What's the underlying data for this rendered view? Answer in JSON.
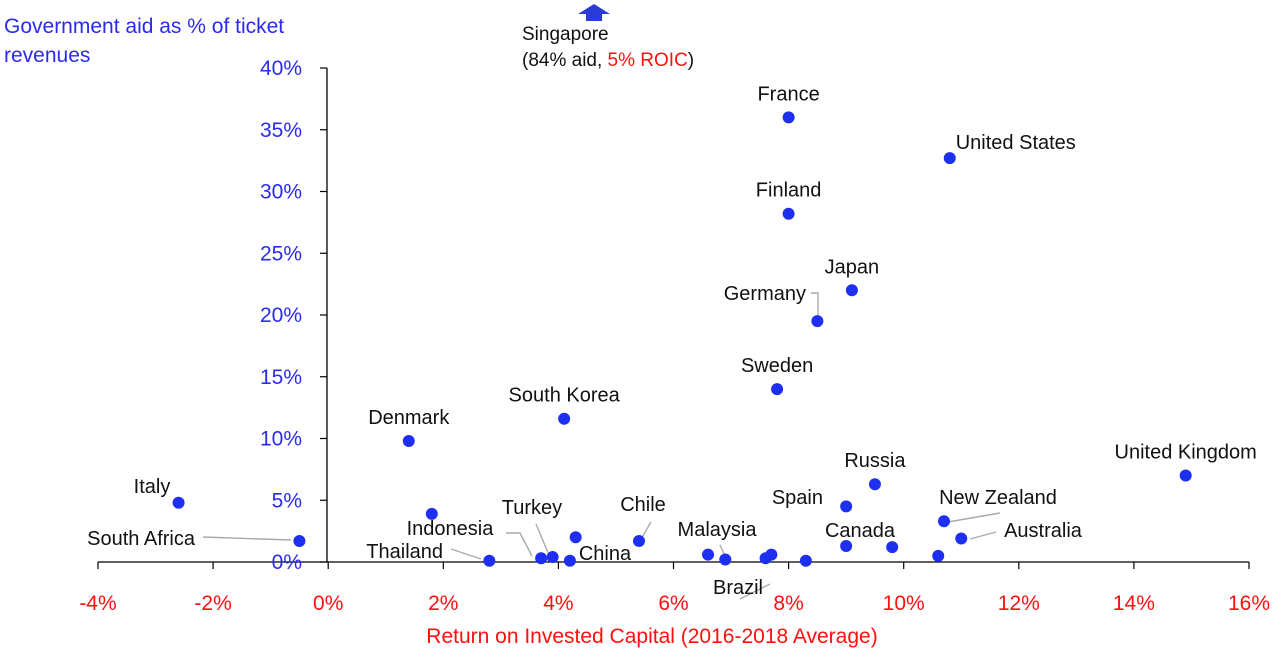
{
  "colors": {
    "axis_text": "#ff1010",
    "y_axis_text": "#2b2bf0",
    "point": "#1f2ff0",
    "label_text": "#111111",
    "leader_line": "#aaaaaa",
    "axis_line": "#000000"
  },
  "singapore_note": {
    "country": "Singapore",
    "open": "(84% aid, ",
    "roic": "5% ROIC",
    "close": ")",
    "marker": "up-arrow-icon"
  },
  "chart_data": {
    "type": "scatter",
    "title": "",
    "xlabel": "Return on Invested Capital (2016-2018  Average)",
    "ylabel": "Government aid as % of ticket revenues",
    "xlim": [
      -4,
      16
    ],
    "ylim": [
      0,
      40
    ],
    "x_unit": "%",
    "y_unit": "%",
    "x_ticks": [
      "-4%",
      "-2%",
      "0%",
      "2%",
      "4%",
      "6%",
      "8%",
      "10%",
      "12%",
      "14%",
      "16%"
    ],
    "y_ticks": [
      "0%",
      "5%",
      "10%",
      "15%",
      "20%",
      "25%",
      "30%",
      "35%",
      "40%"
    ],
    "grid": false,
    "points": [
      {
        "label": "France",
        "x": 8.0,
        "y": 36.0
      },
      {
        "label": "United States",
        "x": 10.8,
        "y": 32.7
      },
      {
        "label": "Finland",
        "x": 8.0,
        "y": 28.2
      },
      {
        "label": "Japan",
        "x": 9.1,
        "y": 22.0
      },
      {
        "label": "Germany",
        "x": 8.5,
        "y": 19.5
      },
      {
        "label": "Sweden",
        "x": 7.8,
        "y": 14.0
      },
      {
        "label": "South Korea",
        "x": 4.1,
        "y": 11.6
      },
      {
        "label": "Denmark",
        "x": 1.4,
        "y": 9.8
      },
      {
        "label": "United Kingdom",
        "x": 14.9,
        "y": 7.0
      },
      {
        "label": "Russia",
        "x": 9.5,
        "y": 6.3
      },
      {
        "label": "Italy",
        "x": -2.6,
        "y": 4.8
      },
      {
        "label": "Spain",
        "x": 9.0,
        "y": 4.5
      },
      {
        "label": "New Zealand",
        "x": 10.7,
        "y": 3.3
      },
      {
        "label": "Australia",
        "x": 11.0,
        "y": 1.9
      },
      {
        "label": "South Africa",
        "x": -0.5,
        "y": 1.7
      },
      {
        "label": "Chile",
        "x": 5.4,
        "y": 1.7
      },
      {
        "label": "Canada",
        "x": 9.0,
        "y": 1.3
      },
      {
        "label": "Thailand",
        "x": 2.8,
        "y": 0.1
      },
      {
        "label": "Indonesia",
        "x": 3.7,
        "y": 0.3
      },
      {
        "label": "Turkey",
        "x": 3.9,
        "y": 0.4
      },
      {
        "label": "China",
        "x": 4.2,
        "y": 0.1
      },
      {
        "label": "Malaysia",
        "x": 6.9,
        "y": 0.2
      },
      {
        "label": "Brazil",
        "x": 7.6,
        "y": 0.3
      },
      {
        "label": null,
        "x": 1.8,
        "y": 3.9
      },
      {
        "label": null,
        "x": 4.3,
        "y": 2.0
      },
      {
        "label": null,
        "x": 6.6,
        "y": 0.6
      },
      {
        "label": null,
        "x": 7.7,
        "y": 0.6
      },
      {
        "label": null,
        "x": 8.3,
        "y": 0.1
      },
      {
        "label": null,
        "x": 9.8,
        "y": 1.2
      },
      {
        "label": null,
        "x": 10.6,
        "y": 0.5
      }
    ]
  }
}
